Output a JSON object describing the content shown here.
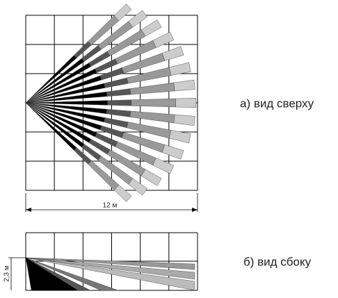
{
  "top_view": {
    "label": "а) вид сверху",
    "width_label": "12 м"
  },
  "side_view": {
    "label": "б) вид сбоку",
    "height_label": "2,3 м"
  }
}
